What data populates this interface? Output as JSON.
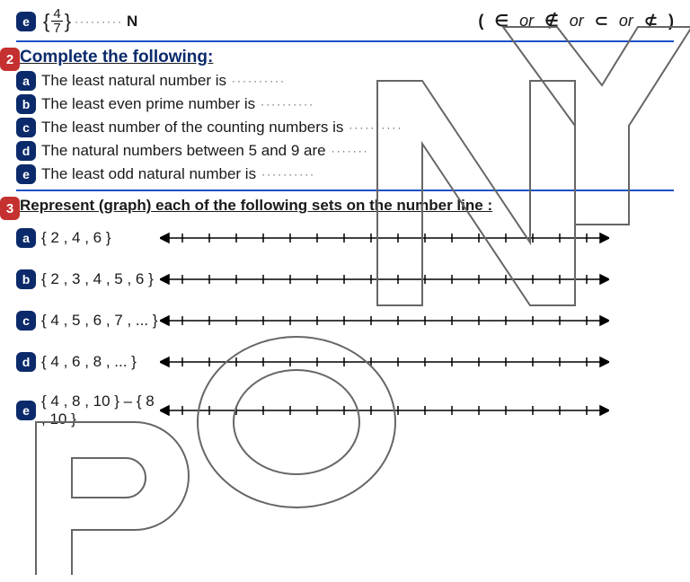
{
  "colors": {
    "badge_blue": "#0b2a6b",
    "rule_blue": "#1e4fc7",
    "q_red": "#c53030",
    "text": "#1a1a1a",
    "pony_stroke": "#666666"
  },
  "top": {
    "item_e": {
      "label": "e",
      "set_open": "{",
      "num": "4",
      "den": "7",
      "set_close": "}",
      "dots": "·········",
      "tail": "N"
    },
    "choices": {
      "open": "(",
      "c1": "∈",
      "or": "or",
      "c2": "∉",
      "c3": "⊂",
      "c4": "⊄",
      "close": ")"
    }
  },
  "q2": {
    "num": "2",
    "title": "Complete the following:",
    "items": [
      {
        "label": "a",
        "text": "The least natural number is",
        "dots": "··········"
      },
      {
        "label": "b",
        "text": "The least even prime number is",
        "dots": "··········"
      },
      {
        "label": "c",
        "text": "The least number of the counting numbers is",
        "dots": "··········"
      },
      {
        "label": "d",
        "text": "The natural numbers between  5  and  9  are",
        "dots": "·······"
      },
      {
        "label": "e",
        "text": "The least odd natural number is",
        "dots": "··········"
      }
    ]
  },
  "q3": {
    "num": "3",
    "title": "Represent (graph) each of the following sets on the number line :",
    "items": [
      {
        "label": "a",
        "set": "{ 2 , 4 , 6 }",
        "ticks": 16
      },
      {
        "label": "b",
        "set": "{ 2 , 3 , 4 , 5 , 6 }",
        "ticks": 16
      },
      {
        "label": "c",
        "set": "{ 4 , 5 , 6 , 7 , ... }",
        "ticks": 16
      },
      {
        "label": "d",
        "set": "{ 4 , 6 , 8 , ... }",
        "ticks": 16
      },
      {
        "label": "e",
        "set": "{ 4 , 8 , 10 } – { 8 , 10 }",
        "ticks": 16
      }
    ],
    "line": {
      "length": 500,
      "tick_h": 10,
      "arrow": 10,
      "stroke": "#000000",
      "stroke_w": 1.5
    }
  }
}
